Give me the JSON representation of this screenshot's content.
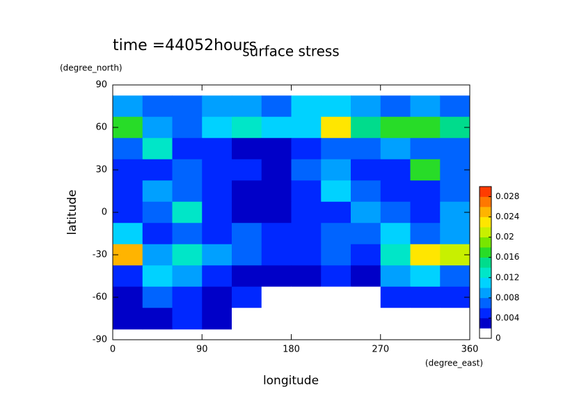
{
  "chart_data": {
    "type": "contour",
    "title": "surface stress",
    "subtitle": "time =44052hours",
    "xlabel": "longitude",
    "xunit": "(degree_east)",
    "ylabel": "latitude",
    "yunit": "(degree_north)",
    "xlim": [
      0,
      360
    ],
    "xticks": [
      0,
      90,
      180,
      270,
      360
    ],
    "ylim": [
      -90,
      90
    ],
    "yticks": [
      -90,
      -60,
      -30,
      0,
      30,
      60,
      90
    ],
    "x": [
      15,
      45,
      75,
      105,
      135,
      165,
      195,
      225,
      255,
      285,
      315,
      345
    ],
    "y": [
      75,
      60,
      45,
      30,
      15,
      0,
      -15,
      -30,
      -45,
      -60,
      -75
    ],
    "values": [
      [
        0.008,
        0.006,
        0.006,
        0.008,
        0.008,
        0.006,
        0.01,
        0.01,
        0.008,
        0.006,
        0.008,
        0.006
      ],
      [
        0.016,
        0.008,
        0.006,
        0.01,
        0.012,
        0.01,
        0.01,
        0.022,
        0.014,
        0.016,
        0.016,
        0.014
      ],
      [
        0.006,
        0.012,
        0.004,
        0.004,
        0.002,
        0.002,
        0.004,
        0.006,
        0.006,
        0.008,
        0.006,
        0.006
      ],
      [
        0.004,
        0.004,
        0.006,
        0.004,
        0.004,
        0.002,
        0.006,
        0.008,
        0.004,
        0.004,
        0.016,
        0.006
      ],
      [
        0.004,
        0.008,
        0.006,
        0.004,
        0.002,
        0.002,
        0.004,
        0.01,
        0.006,
        0.004,
        0.004,
        0.006
      ],
      [
        0.004,
        0.006,
        0.012,
        0.004,
        0.002,
        0.002,
        0.004,
        0.004,
        0.008,
        0.006,
        0.004,
        0.008
      ],
      [
        0.01,
        0.004,
        0.006,
        0.004,
        0.006,
        0.004,
        0.004,
        0.006,
        0.006,
        0.01,
        0.006,
        0.008
      ],
      [
        0.024,
        0.008,
        0.012,
        0.008,
        0.006,
        0.004,
        0.004,
        0.006,
        0.004,
        0.012,
        0.022,
        0.02
      ],
      [
        0.004,
        0.01,
        0.008,
        0.004,
        0.002,
        0.002,
        0.002,
        0.004,
        0.002,
        0.008,
        0.01,
        0.006
      ],
      [
        0.002,
        0.006,
        0.004,
        0.002,
        0.004,
        0,
        0,
        0,
        0,
        0.004,
        0.004,
        0.004
      ],
      [
        0.002,
        0.002,
        0.004,
        0.002,
        0,
        0,
        0,
        0,
        0,
        0,
        0,
        0
      ]
    ],
    "clim": [
      0,
      0.03
    ],
    "cticks": [
      0,
      0.004,
      0.008,
      0.012,
      0.016,
      0.02,
      0.024,
      0.028
    ],
    "colors": [
      "#ffffff",
      "#0000c8",
      "#0028ff",
      "#0064ff",
      "#00a0ff",
      "#00d2ff",
      "#00e6c8",
      "#00dc8c",
      "#28dc28",
      "#78e600",
      "#c8f000",
      "#ffe600",
      "#ffb400",
      "#ff7800",
      "#ff3c00"
    ]
  }
}
